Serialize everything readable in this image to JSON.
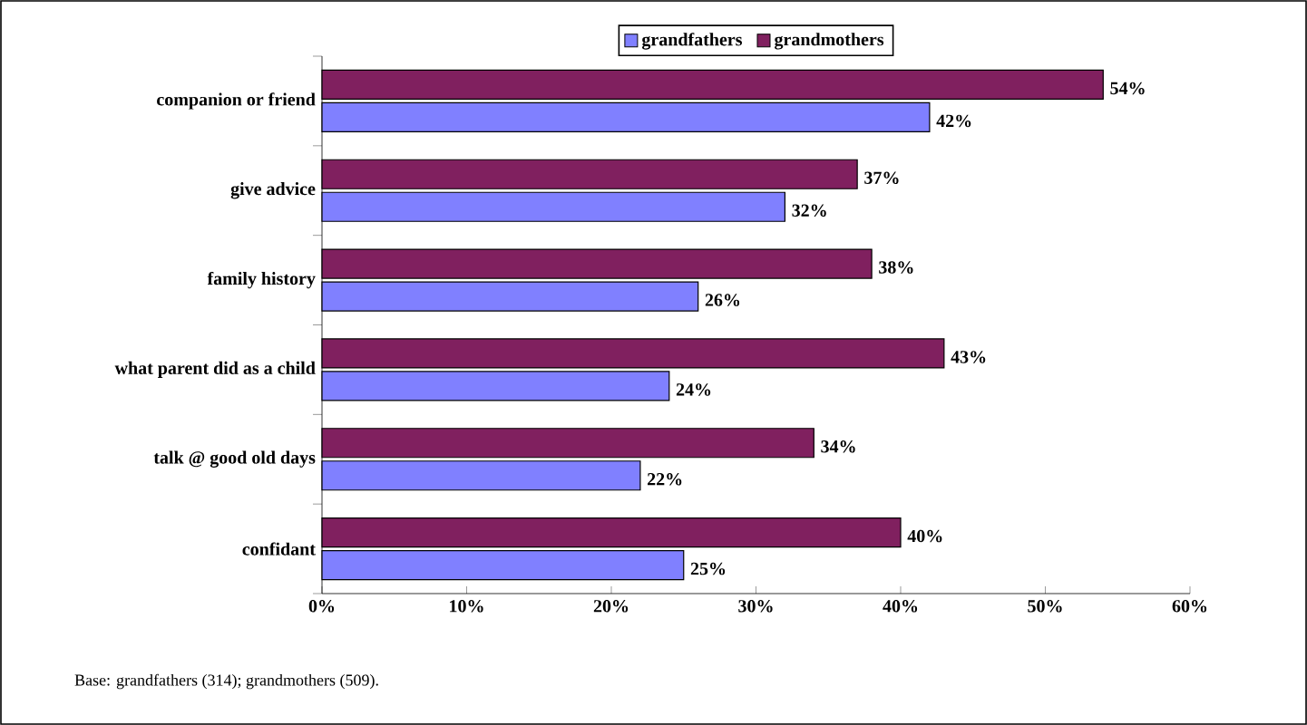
{
  "chart_data": {
    "type": "bar",
    "orientation": "horizontal",
    "categories": [
      "companion or friend",
      "give advice",
      "family history",
      "what parent did as a child",
      "talk @ good old days",
      "confidant"
    ],
    "series": [
      {
        "name": "grandfathers",
        "color": "#8080ff",
        "values": [
          42,
          32,
          26,
          24,
          22,
          25
        ],
        "value_labels": [
          "42%",
          "32%",
          "26%",
          "24%",
          "22%",
          "25%"
        ]
      },
      {
        "name": "grandmothers",
        "color": "#80205f",
        "values": [
          54,
          37,
          38,
          43,
          34,
          40
        ],
        "value_labels": [
          "54%",
          "37%",
          "38%",
          "43%",
          "34%",
          "40%"
        ]
      }
    ],
    "xlim": [
      0,
      60
    ],
    "xticks": [
      {
        "value": 0,
        "label": "0%"
      },
      {
        "value": 10,
        "label": "10%"
      },
      {
        "value": 20,
        "label": "20%"
      },
      {
        "value": 30,
        "label": "30%"
      },
      {
        "value": 40,
        "label": "40%"
      },
      {
        "value": 50,
        "label": "50%"
      },
      {
        "value": 60,
        "label": "60%"
      }
    ],
    "legend": "top",
    "grid": false,
    "annotations": [
      "Base: grandfathers (314);  grandmothers (509)."
    ]
  }
}
